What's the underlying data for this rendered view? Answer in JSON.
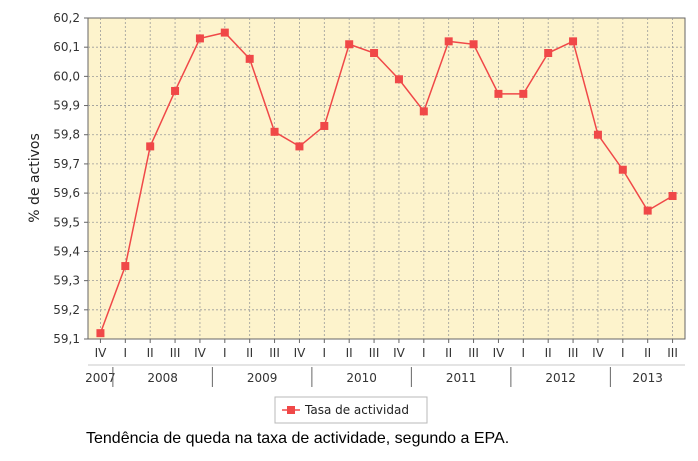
{
  "chart_data": {
    "type": "line",
    "ylabel": "% de activos",
    "ylim": [
      59.1,
      60.2
    ],
    "yticks": [
      "59,1",
      "59,2",
      "59,3",
      "59,4",
      "59,5",
      "59,6",
      "59,7",
      "59,8",
      "59,9",
      "60,0",
      "60,1",
      "60,2"
    ],
    "quarters": [
      "IV",
      "I",
      "II",
      "III",
      "IV",
      "I",
      "II",
      "III",
      "IV",
      "I",
      "II",
      "III",
      "IV",
      "I",
      "II",
      "III",
      "IV",
      "I",
      "II",
      "III",
      "IV",
      "I",
      "II",
      "III"
    ],
    "years": [
      {
        "label": "2007",
        "start": 0,
        "end": 0
      },
      {
        "label": "2008",
        "start": 1,
        "end": 4
      },
      {
        "label": "2009",
        "start": 5,
        "end": 8
      },
      {
        "label": "2010",
        "start": 9,
        "end": 12
      },
      {
        "label": "2011",
        "start": 13,
        "end": 16
      },
      {
        "label": "2012",
        "start": 17,
        "end": 20
      },
      {
        "label": "2013",
        "start": 21,
        "end": 23
      }
    ],
    "grid": true,
    "legend_position": "bottom",
    "series": [
      {
        "name": "Tasa de actividad",
        "color": "#f04848",
        "values": [
          59.12,
          59.35,
          59.76,
          59.95,
          60.13,
          60.15,
          60.06,
          59.81,
          59.76,
          59.83,
          60.11,
          60.08,
          59.99,
          59.88,
          60.12,
          60.11,
          59.94,
          59.94,
          60.08,
          60.12,
          59.8,
          59.68,
          59.54,
          59.59
        ]
      }
    ]
  },
  "colors": {
    "plot_background": "#fdf3cc",
    "grid": "#9a9a9a",
    "axis": "#666666"
  },
  "caption": "Tendência de queda na taxa de actividade, segundo a EPA."
}
